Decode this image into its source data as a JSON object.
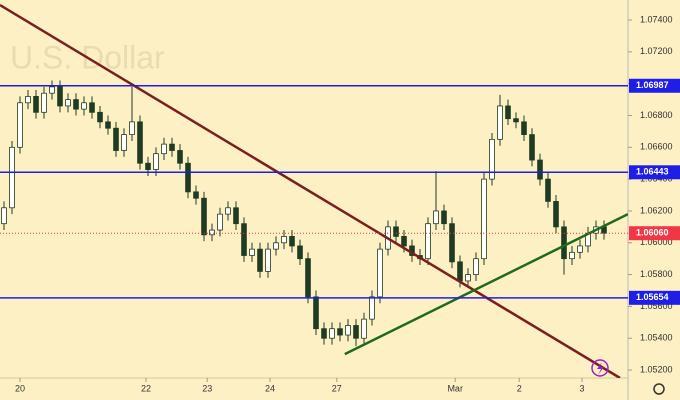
{
  "chart_data": {
    "type": "candlestick",
    "subtitle": "U.S. Dollar",
    "x": [
      0,
      1,
      2,
      3,
      4,
      5,
      6,
      7,
      8,
      9,
      10,
      11,
      12,
      13,
      14,
      15,
      16,
      17,
      18,
      19,
      20,
      21,
      22,
      23,
      24,
      25,
      26,
      27,
      28,
      29,
      30,
      31,
      32,
      33,
      34,
      35,
      36,
      37,
      38,
      39,
      40,
      41,
      42,
      43,
      44,
      45,
      46,
      47,
      48,
      49,
      50,
      51,
      52,
      53,
      54,
      55,
      56,
      57,
      58,
      59,
      60,
      61,
      62,
      63,
      64,
      65,
      66,
      67,
      68,
      69,
      70,
      71,
      72,
      73,
      74,
      75
    ],
    "open": [
      1.0612,
      1.0622,
      1.066,
      1.0688,
      1.0692,
      1.0682,
      1.0694,
      1.0698,
      1.0686,
      1.069,
      1.0684,
      1.0688,
      1.0682,
      1.0676,
      1.0672,
      1.0658,
      1.0668,
      1.0676,
      1.065,
      1.0646,
      1.0656,
      1.0662,
      1.0658,
      1.065,
      1.0632,
      1.0628,
      1.0605,
      1.0608,
      1.0618,
      1.0622,
      1.0612,
      1.0592,
      1.0596,
      1.0582,
      1.0596,
      1.06,
      1.0604,
      1.0598,
      1.059,
      1.0566,
      1.0546,
      1.054,
      1.0546,
      1.0542,
      1.0548,
      1.054,
      1.0552,
      1.0566,
      1.0596,
      1.061,
      1.0604,
      1.0598,
      1.0592,
      1.059,
      1.0612,
      1.062,
      1.0612,
      1.0588,
      1.0576,
      1.058,
      1.059,
      1.064,
      1.0665,
      1.0686,
      1.0678,
      1.0676,
      1.0668,
      1.0652,
      1.064,
      1.0626,
      1.061,
      1.059,
      1.0594,
      1.0598,
      1.0606,
      1.061
    ],
    "high": [
      1.0626,
      1.0664,
      1.0692,
      1.0696,
      1.0696,
      1.0698,
      1.0702,
      1.0702,
      1.0694,
      1.0694,
      1.0692,
      1.0692,
      1.0686,
      1.068,
      1.0676,
      1.0672,
      1.0698,
      1.068,
      1.0654,
      1.066,
      1.0666,
      1.0666,
      1.0662,
      1.0654,
      1.0636,
      1.0632,
      1.0612,
      1.0622,
      1.0626,
      1.0626,
      1.0616,
      1.06,
      1.06,
      1.06,
      1.0604,
      1.0608,
      1.0608,
      1.0602,
      1.0594,
      1.057,
      1.055,
      1.055,
      1.055,
      1.0552,
      1.0552,
      1.0556,
      1.057,
      1.06,
      1.0614,
      1.0614,
      1.0608,
      1.0602,
      1.0596,
      1.0616,
      1.0645,
      1.0624,
      1.0616,
      1.0592,
      1.0584,
      1.0594,
      1.0644,
      1.0669,
      1.0693,
      1.069,
      1.0682,
      1.068,
      1.0672,
      1.0656,
      1.0644,
      1.063,
      1.0614,
      1.0598,
      1.0602,
      1.061,
      1.0614,
      1.0614
    ],
    "low": [
      1.0608,
      1.0618,
      1.0656,
      1.0684,
      1.0678,
      1.0678,
      1.069,
      1.0682,
      1.0682,
      1.068,
      1.068,
      1.0678,
      1.0672,
      1.0668,
      1.0654,
      1.0654,
      1.0664,
      1.0646,
      1.0642,
      1.0642,
      1.0652,
      1.0654,
      1.0646,
      1.0628,
      1.0624,
      1.0601,
      1.0601,
      1.0604,
      1.0614,
      1.0608,
      1.0588,
      1.0588,
      1.0578,
      1.0578,
      1.0592,
      1.0596,
      1.0594,
      1.0586,
      1.0562,
      1.0542,
      1.0536,
      1.0536,
      1.0538,
      1.0538,
      1.0535,
      1.0536,
      1.0548,
      1.0562,
      1.0592,
      1.06,
      1.0594,
      1.0588,
      1.0586,
      1.0586,
      1.0608,
      1.0608,
      1.0584,
      1.0572,
      1.0572,
      1.0576,
      1.0586,
      1.0636,
      1.0661,
      1.0674,
      1.0672,
      1.0664,
      1.0648,
      1.0636,
      1.0622,
      1.0606,
      1.058,
      1.0586,
      1.059,
      1.0594,
      1.0602,
      1.0602
    ],
    "close": [
      1.0622,
      1.066,
      1.0688,
      1.0692,
      1.0682,
      1.0694,
      1.0698,
      1.0686,
      1.069,
      1.0684,
      1.0688,
      1.0682,
      1.0676,
      1.0672,
      1.0658,
      1.0668,
      1.0676,
      1.065,
      1.0646,
      1.0656,
      1.0662,
      1.0658,
      1.065,
      1.0632,
      1.0628,
      1.0605,
      1.0608,
      1.0618,
      1.0622,
      1.0612,
      1.0592,
      1.0596,
      1.0582,
      1.0596,
      1.06,
      1.0604,
      1.0598,
      1.059,
      1.0566,
      1.0546,
      1.054,
      1.0546,
      1.0542,
      1.0548,
      1.054,
      1.0552,
      1.0566,
      1.0596,
      1.061,
      1.0604,
      1.0598,
      1.0592,
      1.059,
      1.0612,
      1.062,
      1.0612,
      1.0588,
      1.0576,
      1.058,
      1.059,
      1.064,
      1.0665,
      1.0686,
      1.0678,
      1.0676,
      1.0668,
      1.0652,
      1.064,
      1.0626,
      1.061,
      1.059,
      1.0594,
      1.0598,
      1.0606,
      1.061,
      1.0606
    ],
    "up_color": "#ffffff",
    "down_color": "#1f3b22",
    "wick_color": "#1f3b22",
    "xlim": [
      -0.5,
      78
    ],
    "ylim": [
      1.0515,
      1.07526
    ],
    "xticks": [
      {
        "value": 2,
        "label": "20"
      },
      {
        "value": 17.75,
        "label": "22"
      },
      {
        "value": 25.4,
        "label": "23"
      },
      {
        "value": 33.25,
        "label": "24"
      },
      {
        "value": 41.6,
        "label": "27"
      },
      {
        "value": 56.4,
        "label": "Mar"
      },
      {
        "value": 64.4,
        "label": "2"
      },
      {
        "value": 72.25,
        "label": "3"
      }
    ],
    "yticks": [
      {
        "value": 1.074,
        "label": "1.07400"
      },
      {
        "value": 1.072,
        "label": "1.07200"
      },
      {
        "value": 1.07,
        "label": "1.07000"
      },
      {
        "value": 1.068,
        "label": "1.06800"
      },
      {
        "value": 1.066,
        "label": "1.06600"
      },
      {
        "value": 1.064,
        "label": "1.06400"
      },
      {
        "value": 1.062,
        "label": "1.06200"
      },
      {
        "value": 1.06,
        "label": "1.06000"
      },
      {
        "value": 1.058,
        "label": "1.05800"
      },
      {
        "value": 1.056,
        "label": "1.05600"
      },
      {
        "value": 1.054,
        "label": "1.05400"
      },
      {
        "value": 1.052,
        "label": "1.05200"
      }
    ],
    "levels": [
      {
        "value": 1.06987,
        "label": "1.06987",
        "color": "#1e1ee6"
      },
      {
        "value": 1.06443,
        "label": "1.06443",
        "color": "#1e1ee6"
      },
      {
        "value": 1.05654,
        "label": "1.05654",
        "color": "#1e1ee6"
      }
    ],
    "last_price": {
      "value": 1.0606,
      "label": "1.06060",
      "color": "#f23645"
    },
    "trend_lines": [
      {
        "color": "#7a1f1f",
        "x": [
          -0.5,
          77
        ],
        "y": [
          1.07494,
          1.0515
        ]
      },
      {
        "color": "#1e6b1e",
        "x": [
          42.6,
          78
        ],
        "y": [
          1.053,
          1.0618
        ]
      }
    ]
  }
}
